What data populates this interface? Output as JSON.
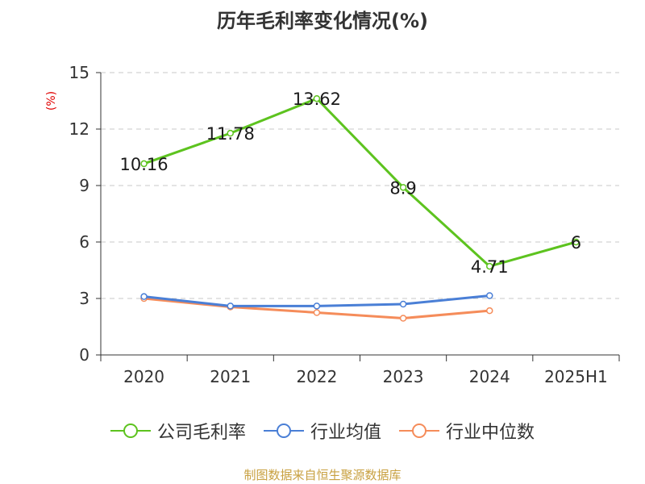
{
  "title": "历年毛利率变化情况(%)",
  "source": "制图数据来自恒生聚源数据库",
  "colors": {
    "company": "#5dc31f",
    "industry_avg": "#4a7fd6",
    "industry_median": "#f58c5a",
    "grid": "#c8c8c8",
    "axis": "#333333",
    "unit": "#e00000"
  },
  "chart_data": {
    "type": "line",
    "title": "历年毛利率变化情况(%)",
    "ylabel": "(%)",
    "xlabel": "",
    "categories": [
      "2020",
      "2021",
      "2022",
      "2023",
      "2024",
      "2025H1"
    ],
    "ylim": [
      0,
      15
    ],
    "yticks": [
      0,
      3,
      6,
      9,
      12,
      15
    ],
    "grid": "horizontal dashed",
    "legend_position": "bottom",
    "series": [
      {
        "name": "公司毛利率",
        "values": [
          10.16,
          11.78,
          13.62,
          8.9,
          4.71,
          6
        ],
        "data_labels": [
          "10.16",
          "11.78",
          "13.62",
          "8.9",
          "4.71",
          "6"
        ]
      },
      {
        "name": "行业均值",
        "values": [
          3.1,
          2.6,
          2.6,
          2.7,
          3.15,
          null
        ]
      },
      {
        "name": "行业中位数",
        "values": [
          3.0,
          2.55,
          2.25,
          1.95,
          2.35,
          null
        ]
      }
    ]
  }
}
